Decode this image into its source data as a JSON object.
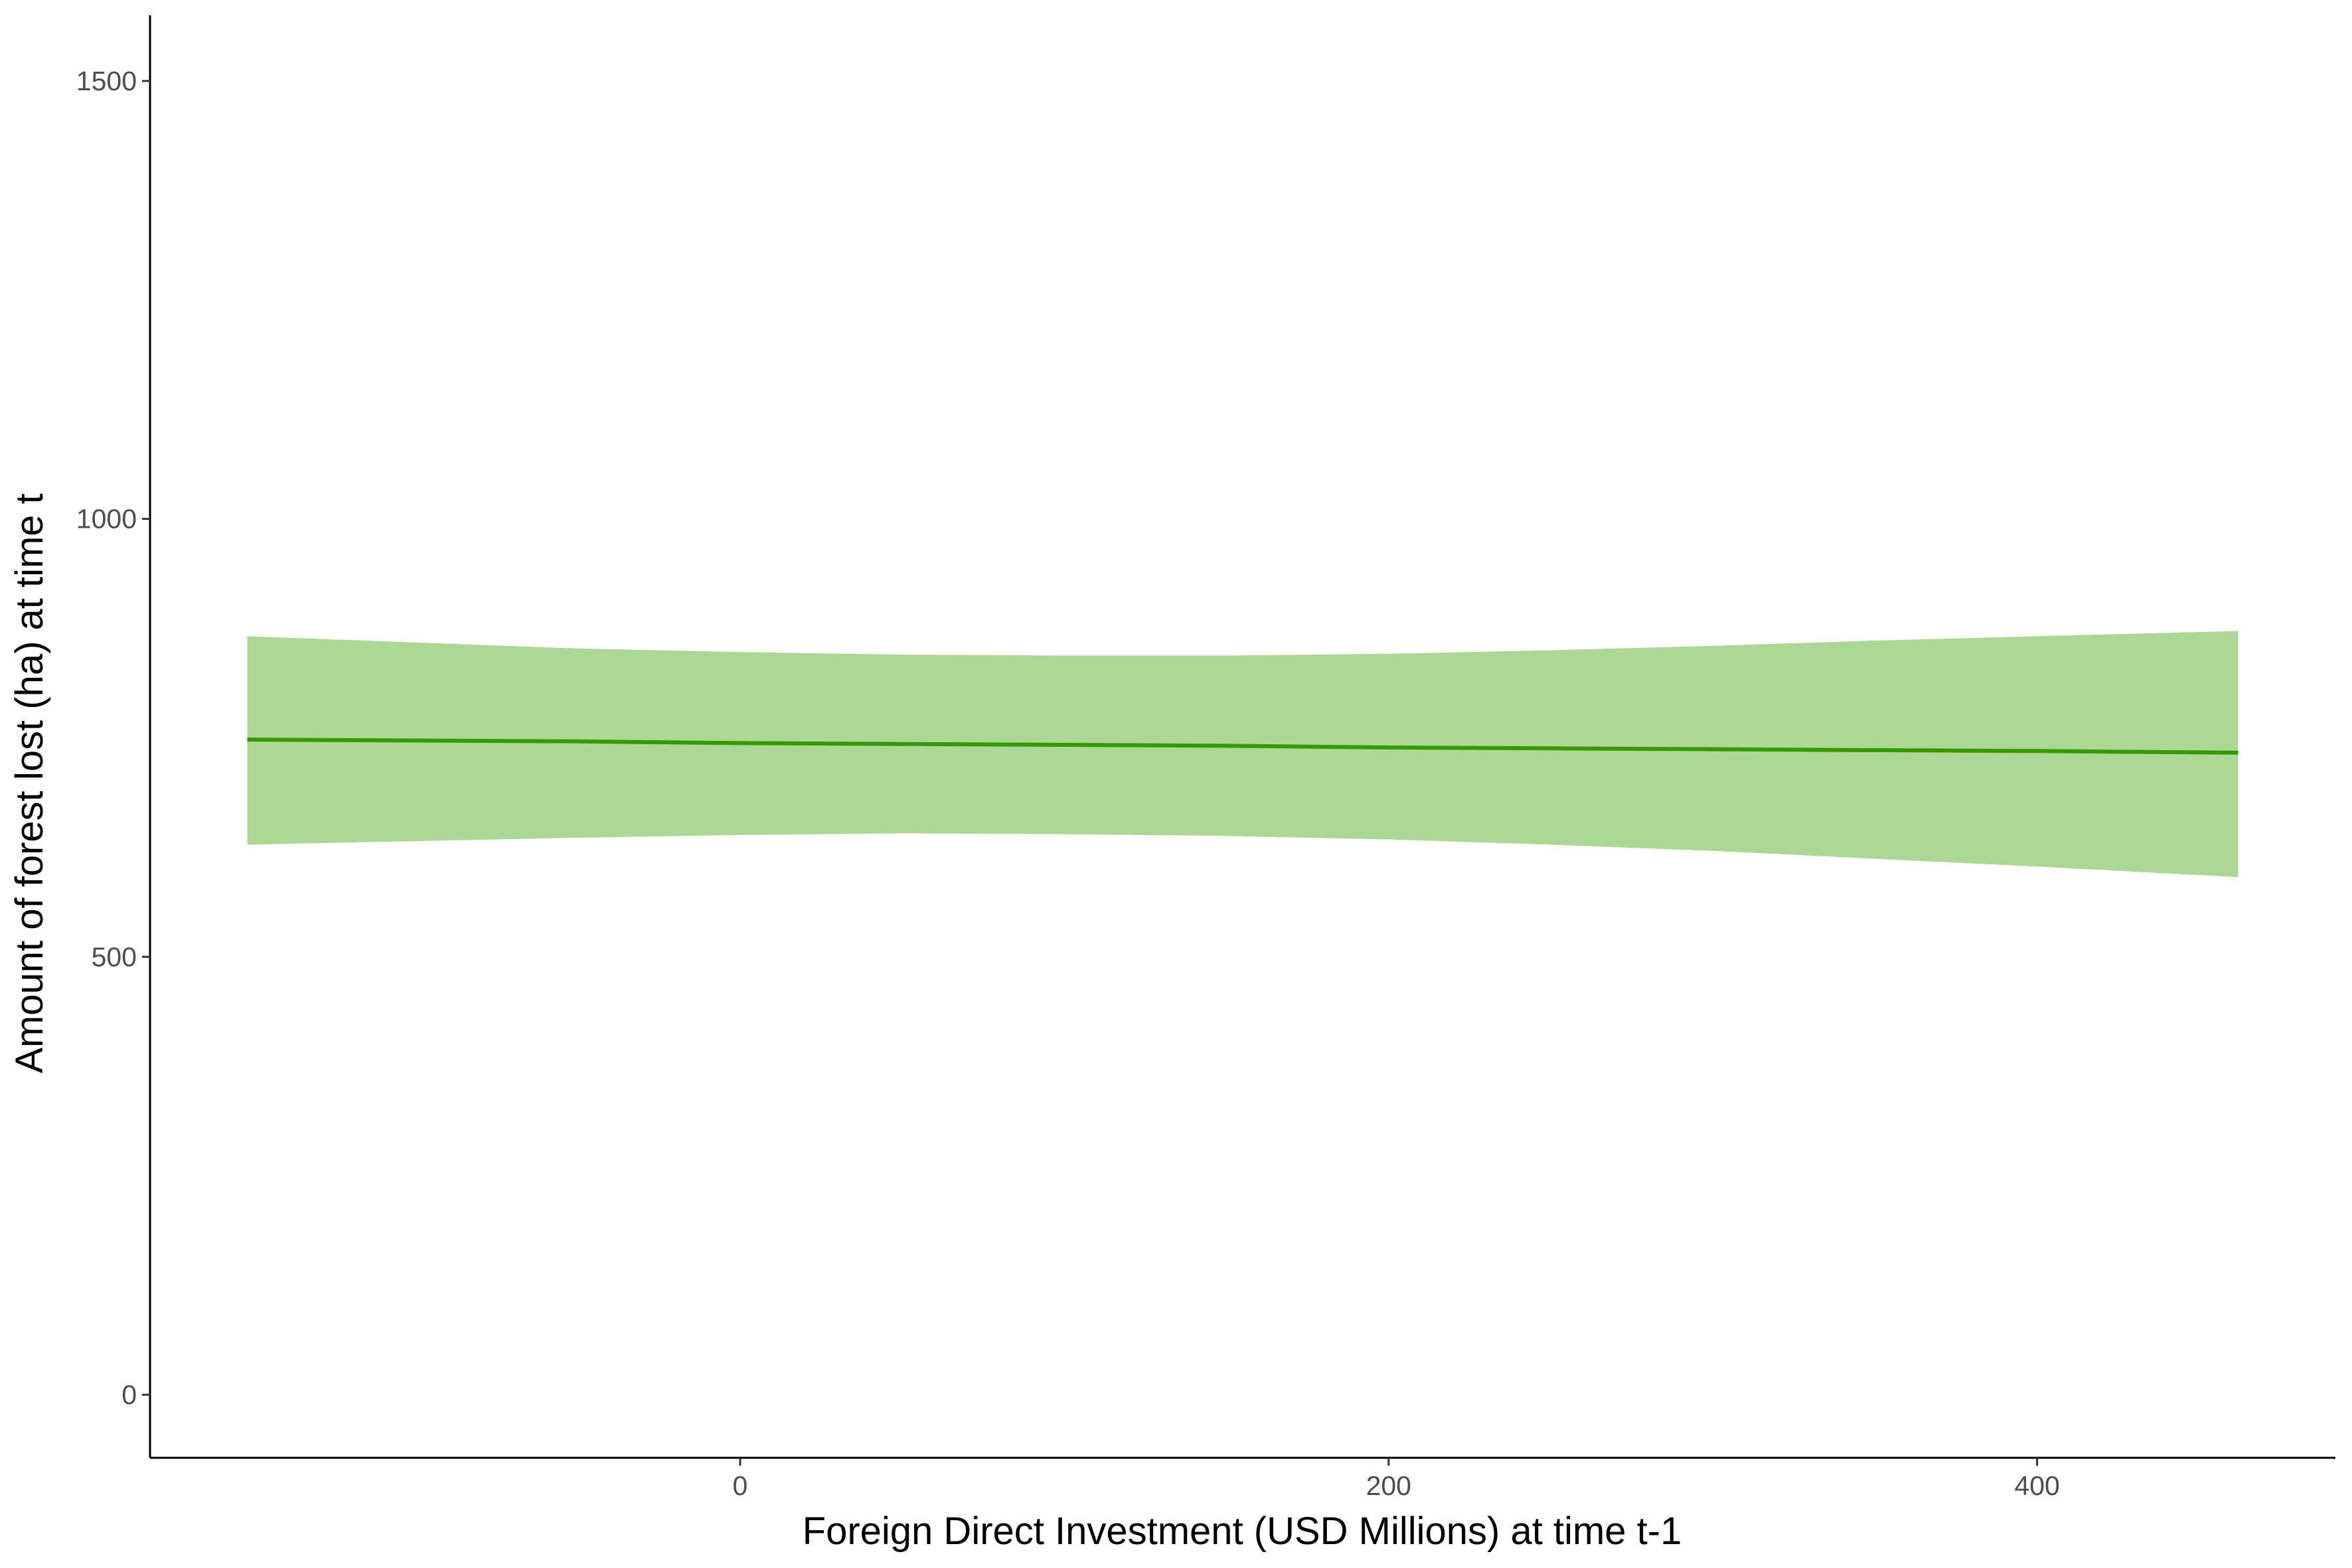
{
  "chart_data": {
    "type": "line",
    "x_label": "Foreign Direct Investment (USD Millions) at time t-1",
    "y_label": "Amount of forest lost (ha) at time t",
    "x": [
      -152,
      -50,
      0,
      50,
      100,
      150,
      200,
      250,
      300,
      350,
      400,
      462
    ],
    "values": [
      748,
      746,
      744,
      743,
      742,
      741,
      739,
      738,
      737,
      736,
      735,
      733
    ],
    "lower": [
      628,
      636,
      639,
      641,
      640,
      638,
      634,
      628,
      621,
      612,
      603,
      591
    ],
    "upper": [
      866,
      852,
      848,
      845,
      844,
      844,
      846,
      850,
      855,
      861,
      866,
      872
    ],
    "color": "#339900",
    "band_color": "#add795",
    "xlim": [
      -182,
      492
    ],
    "ylim": [
      -72,
      1575
    ],
    "xticks": [
      0,
      200,
      400
    ],
    "yticks": [
      0,
      500,
      1000,
      1500
    ],
    "grid": false
  }
}
